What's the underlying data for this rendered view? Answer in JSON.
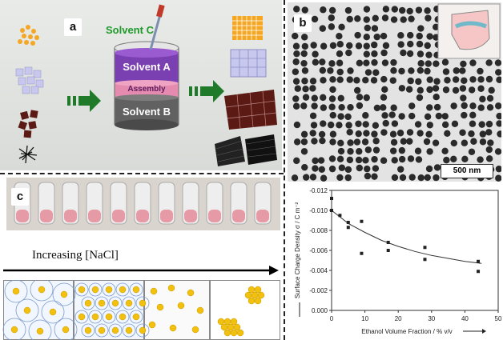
{
  "panels": {
    "a": {
      "label": "a",
      "solvent_c": "Solvent C",
      "solvent_a": "Solvent A",
      "assembly": "Assembly",
      "solvent_b": "Solvent B"
    },
    "b": {
      "label": "b",
      "scale_bar": "500 nm"
    },
    "c": {
      "label": "c",
      "arrow_text": "Increasing [NaCl]"
    }
  },
  "chart_data": {
    "type": "scatter",
    "xlabel": "Ethanol Volume Fraction / % v/v",
    "ylabel": "Surface Charge Density σ / C m⁻²",
    "xlim": [
      0,
      50
    ],
    "ylim": [
      0,
      -0.012
    ],
    "x_ticks": [
      "0",
      "10",
      "20",
      "30",
      "40",
      "50"
    ],
    "y_ticks": [
      "0.000",
      "-0.002",
      "-0.004",
      "-0.006",
      "-0.008",
      "-0.010",
      "-0.012"
    ],
    "points": [
      {
        "x": 0,
        "y": -0.0112
      },
      {
        "x": 0,
        "y": -0.01
      },
      {
        "x": 2.5,
        "y": -0.0095
      },
      {
        "x": 5,
        "y": -0.0083
      },
      {
        "x": 5,
        "y": -0.0088
      },
      {
        "x": 9,
        "y": -0.0089
      },
      {
        "x": 9,
        "y": -0.0057
      },
      {
        "x": 17,
        "y": -0.0068
      },
      {
        "x": 17,
        "y": -0.006
      },
      {
        "x": 28,
        "y": -0.0063
      },
      {
        "x": 28,
        "y": -0.0051
      },
      {
        "x": 44,
        "y": -0.0049
      },
      {
        "x": 44,
        "y": -0.0039
      }
    ],
    "fit_curve": {
      "x": [
        0,
        5,
        10,
        15,
        20,
        25,
        30,
        35,
        40,
        45
      ],
      "y": [
        -0.01,
        -0.0087,
        -0.0078,
        -0.007,
        -0.0064,
        -0.0059,
        -0.0055,
        -0.0052,
        -0.0049,
        -0.0047
      ]
    }
  }
}
